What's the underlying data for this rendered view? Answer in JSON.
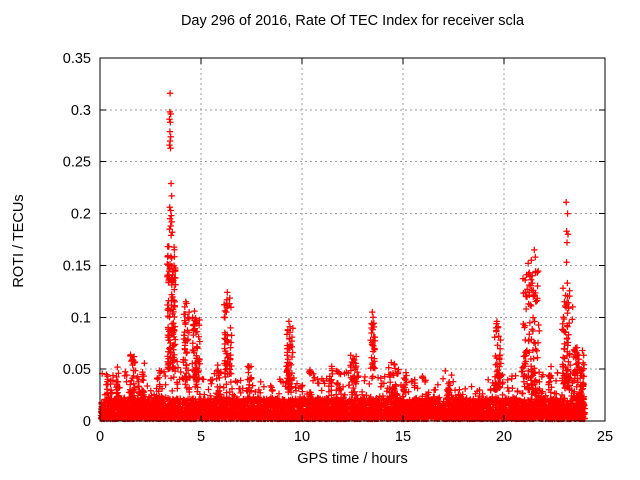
{
  "figure": {
    "background": "#ffffff"
  },
  "chart_data": {
    "type": "scatter",
    "title": "Day 296 of 2016, Rate Of TEC Index for receiver scla",
    "xlabel": "GPS time / hours",
    "ylabel": "ROTI / TECUs",
    "xlim": [
      0,
      25
    ],
    "ylim": [
      0,
      0.35
    ],
    "xticks": [
      0,
      5,
      10,
      15,
      20,
      25
    ],
    "xtick_labels": [
      "0",
      "5",
      "10",
      "15",
      "20",
      "25"
    ],
    "yticks": [
      0,
      0.05,
      0.1,
      0.15,
      0.2,
      0.25,
      0.3,
      0.35
    ],
    "ytick_labels": [
      "0",
      "0.05",
      "0.1",
      "0.15",
      "0.2",
      "0.25",
      "0.3",
      "0.35"
    ],
    "grid": true,
    "grid_style": "dashed",
    "grid_color": "#9c9c9c",
    "axis_color": "#000000",
    "legend": "none",
    "marker": {
      "symbol": "plus",
      "color": "#ff0000",
      "size": 7
    },
    "series_name": "ROTI",
    "data_time_range": [
      0.05,
      24.0
    ],
    "baseline": {
      "count": 5400,
      "band_max": 0.022,
      "envelope_step_hours": 0.5,
      "envelope_max": [
        0.045,
        0.05,
        0.045,
        0.062,
        0.055,
        0.04,
        0.05,
        0.062,
        0.058,
        0.052,
        0.04,
        0.045,
        0.05,
        0.045,
        0.04,
        0.05,
        0.045,
        0.035,
        0.045,
        0.055,
        0.042,
        0.05,
        0.042,
        0.055,
        0.045,
        0.058,
        0.04,
        0.055,
        0.048,
        0.055,
        0.05,
        0.04,
        0.045,
        0.035,
        0.042,
        0.045,
        0.04,
        0.035,
        0.04,
        0.048,
        0.05,
        0.045,
        0.05,
        0.058,
        0.05,
        0.045,
        0.055,
        0.065,
        0.055
      ]
    },
    "spikes": [
      {
        "t0": 0.35,
        "t1": 0.55,
        "v0": 0.018,
        "v1": 0.048,
        "n": 14
      },
      {
        "t0": 0.8,
        "t1": 1.0,
        "v0": 0.018,
        "v1": 0.052,
        "n": 14
      },
      {
        "t0": 1.45,
        "t1": 1.75,
        "v0": 0.022,
        "v1": 0.066,
        "n": 30
      },
      {
        "t0": 2.05,
        "t1": 2.22,
        "v0": 0.018,
        "v1": 0.056,
        "n": 16
      },
      {
        "t0": 2.8,
        "t1": 3.05,
        "v0": 0.018,
        "v1": 0.05,
        "n": 16
      },
      {
        "t0": 3.33,
        "t1": 3.74,
        "v0": 0.05,
        "v1": 0.17,
        "n": 120
      },
      {
        "t0": 4.12,
        "t1": 4.42,
        "v0": 0.04,
        "v1": 0.114,
        "n": 42
      },
      {
        "t0": 4.55,
        "t1": 4.95,
        "v0": 0.04,
        "v1": 0.104,
        "n": 55
      },
      {
        "t0": 5.75,
        "t1": 5.97,
        "v0": 0.02,
        "v1": 0.058,
        "n": 18
      },
      {
        "t0": 6.15,
        "t1": 6.52,
        "v0": 0.045,
        "v1": 0.122,
        "n": 50
      },
      {
        "t0": 7.3,
        "t1": 7.52,
        "v0": 0.018,
        "v1": 0.055,
        "n": 16
      },
      {
        "t0": 9.22,
        "t1": 9.55,
        "v0": 0.03,
        "v1": 0.094,
        "n": 55
      },
      {
        "t0": 10.35,
        "t1": 10.55,
        "v0": 0.018,
        "v1": 0.05,
        "n": 14
      },
      {
        "t0": 11.3,
        "t1": 11.5,
        "v0": 0.018,
        "v1": 0.054,
        "n": 15
      },
      {
        "t0": 11.68,
        "t1": 11.86,
        "v0": 0.018,
        "v1": 0.055,
        "n": 13
      },
      {
        "t0": 12.4,
        "t1": 12.7,
        "v0": 0.025,
        "v1": 0.064,
        "n": 24
      },
      {
        "t0": 13.38,
        "t1": 13.62,
        "v0": 0.05,
        "v1": 0.1,
        "n": 24
      },
      {
        "t0": 14.3,
        "t1": 14.75,
        "v0": 0.022,
        "v1": 0.057,
        "n": 28
      },
      {
        "t0": 15.0,
        "t1": 15.2,
        "v0": 0.018,
        "v1": 0.05,
        "n": 12
      },
      {
        "t0": 17.08,
        "t1": 17.3,
        "v0": 0.018,
        "v1": 0.056,
        "n": 14
      },
      {
        "t0": 19.5,
        "t1": 19.85,
        "v0": 0.03,
        "v1": 0.094,
        "n": 50
      },
      {
        "t0": 20.9,
        "t1": 21.75,
        "v0": 0.03,
        "v1": 0.145,
        "n": 105
      },
      {
        "t0": 22.2,
        "t1": 22.42,
        "v0": 0.018,
        "v1": 0.055,
        "n": 16
      },
      {
        "t0": 22.88,
        "t1": 23.3,
        "v0": 0.03,
        "v1": 0.13,
        "n": 70
      },
      {
        "t0": 23.42,
        "t1": 23.98,
        "v0": 0.022,
        "v1": 0.072,
        "n": 60
      }
    ],
    "outliers": [
      [
        3.47,
        0.316
      ],
      [
        3.46,
        0.298
      ],
      [
        3.5,
        0.296
      ],
      [
        3.44,
        0.291
      ],
      [
        3.48,
        0.288
      ],
      [
        3.46,
        0.279
      ],
      [
        3.5,
        0.274
      ],
      [
        3.47,
        0.27
      ],
      [
        3.44,
        0.266
      ],
      [
        3.49,
        0.263
      ],
      [
        3.52,
        0.229
      ],
      [
        3.55,
        0.217
      ],
      [
        3.45,
        0.206
      ],
      [
        3.5,
        0.203
      ],
      [
        3.53,
        0.198
      ],
      [
        3.47,
        0.195
      ],
      [
        3.55,
        0.192
      ],
      [
        3.5,
        0.188
      ],
      [
        3.44,
        0.185
      ],
      [
        3.58,
        0.182
      ],
      [
        3.52,
        0.179
      ],
      [
        4.2,
        0.11
      ],
      [
        4.25,
        0.115
      ],
      [
        4.22,
        0.103
      ],
      [
        4.68,
        0.106
      ],
      [
        4.74,
        0.099
      ],
      [
        4.63,
        0.093
      ],
      [
        6.25,
        0.105
      ],
      [
        6.3,
        0.124
      ],
      [
        6.28,
        0.117
      ],
      [
        6.33,
        0.111
      ],
      [
        9.3,
        0.088
      ],
      [
        9.35,
        0.096
      ],
      [
        9.4,
        0.091
      ],
      [
        13.48,
        0.105
      ],
      [
        13.52,
        0.1
      ],
      [
        13.45,
        0.094
      ],
      [
        13.5,
        0.088
      ],
      [
        13.55,
        0.081
      ],
      [
        13.47,
        0.074
      ],
      [
        13.52,
        0.067
      ],
      [
        13.44,
        0.061
      ],
      [
        19.65,
        0.096
      ],
      [
        19.7,
        0.09
      ],
      [
        21.2,
        0.152
      ],
      [
        21.35,
        0.155
      ],
      [
        21.5,
        0.165
      ],
      [
        21.55,
        0.158
      ],
      [
        21.25,
        0.143
      ],
      [
        21.4,
        0.133
      ],
      [
        21.15,
        0.127
      ],
      [
        21.45,
        0.12
      ],
      [
        21.3,
        0.112
      ],
      [
        23.08,
        0.211
      ],
      [
        23.15,
        0.2
      ],
      [
        23.1,
        0.183
      ],
      [
        23.17,
        0.18
      ],
      [
        23.12,
        0.172
      ],
      [
        23.1,
        0.153
      ],
      [
        23.14,
        0.133
      ],
      [
        23.05,
        0.121
      ],
      [
        23.19,
        0.114
      ],
      [
        23.4,
        0.11
      ],
      [
        23.38,
        0.098
      ]
    ]
  }
}
